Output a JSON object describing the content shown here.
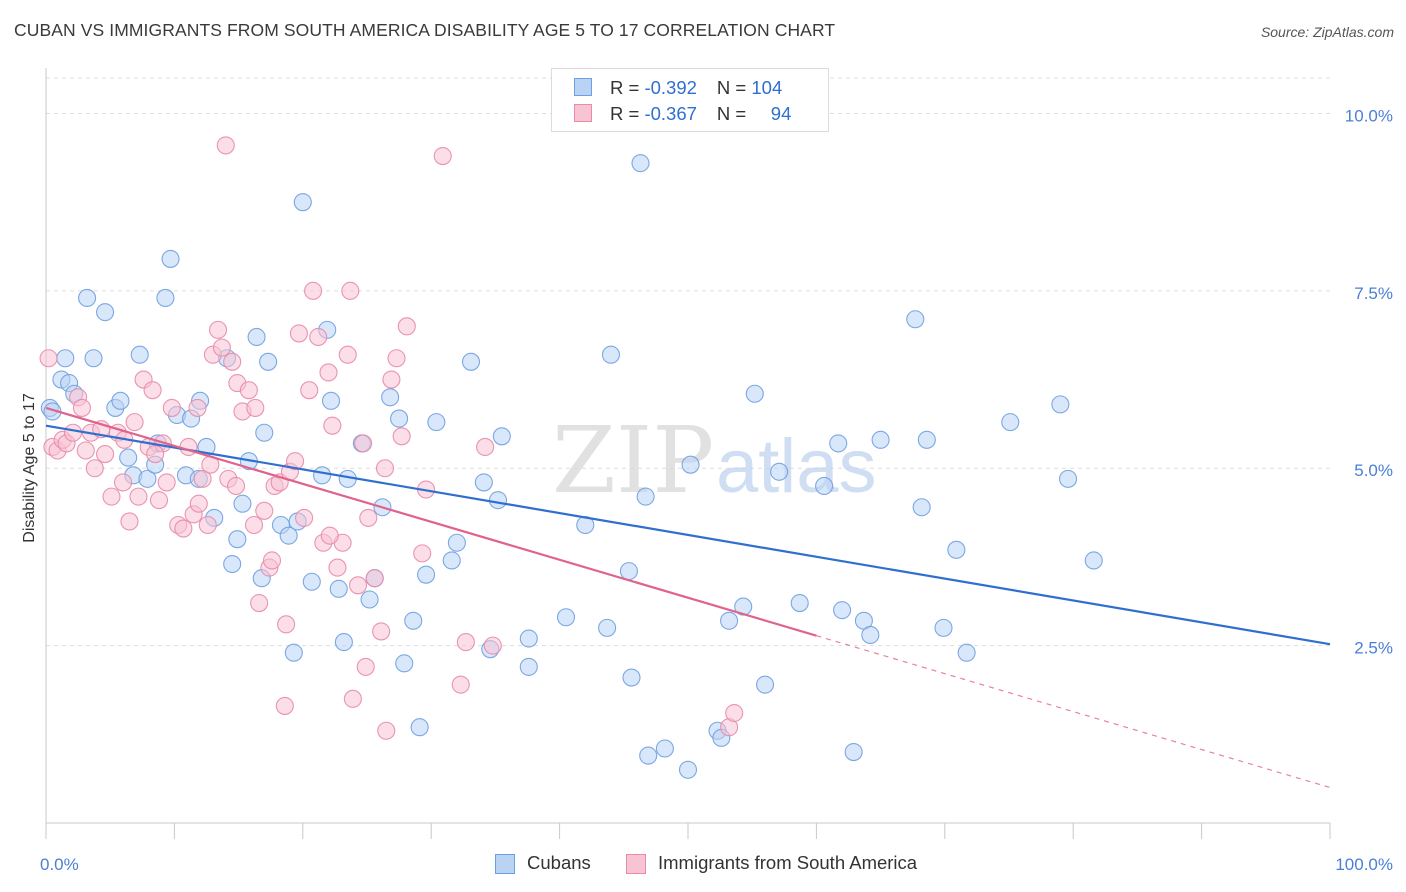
{
  "title": "CUBAN VS IMMIGRANTS FROM SOUTH AMERICA DISABILITY AGE 5 TO 17 CORRELATION CHART",
  "source": "Source: ZipAtlas.com",
  "watermark": {
    "zip": "ZIP",
    "atlas": "atlas"
  },
  "legend": {
    "rows": [
      {
        "r_label": "R = ",
        "r_value": "-0.392",
        "n_label": "N = ",
        "n_value": "104"
      },
      {
        "r_label": "R = ",
        "r_value": "-0.367",
        "n_label": "N = ",
        "n_value": "94"
      }
    ]
  },
  "colors": {
    "blue_fill": "#b9d3f5",
    "blue_stroke": "#6f9fe0",
    "blue_line": "#2f6fd0",
    "pink_fill": "#f8c3d3",
    "pink_stroke": "#e88aa8",
    "pink_line": "#e0638c",
    "grid": "#dddddd",
    "tick_label": "#4a7fd6"
  },
  "chart_data": {
    "type": "scatter",
    "title": "CUBAN VS IMMIGRANTS FROM SOUTH AMERICA DISABILITY AGE 5 TO 17 CORRELATION CHART",
    "xlabel": "",
    "ylabel": "Disability Age 5 to 17",
    "xlim": [
      0,
      100
    ],
    "ylim": [
      0,
      10.5
    ],
    "x_ticks": [
      0,
      10,
      20,
      30,
      40,
      50,
      60,
      70,
      80,
      90,
      100
    ],
    "x_tick_labels": {
      "0": "0.0%",
      "100": "100.0%"
    },
    "y_ticks": [
      2.5,
      5.0,
      7.5,
      10.0
    ],
    "y_tick_labels": [
      "2.5%",
      "5.0%",
      "7.5%",
      "10.0%"
    ],
    "grid": true,
    "legend_placement": "bottom",
    "series": [
      {
        "name": "Cubans",
        "color": "#6f9fe0",
        "trend": {
          "x0": 0,
          "y0": 5.6,
          "x1": 100,
          "y1": 2.52,
          "dashed_from": null
        },
        "points": [
          [
            0.3,
            5.85
          ],
          [
            0.5,
            5.8
          ],
          [
            1.2,
            6.25
          ],
          [
            1.5,
            6.55
          ],
          [
            1.8,
            6.2
          ],
          [
            2.2,
            6.05
          ],
          [
            3.2,
            7.4
          ],
          [
            3.7,
            6.55
          ],
          [
            4.6,
            7.2
          ],
          [
            5.4,
            5.85
          ],
          [
            5.8,
            5.95
          ],
          [
            6.4,
            5.15
          ],
          [
            6.8,
            4.9
          ],
          [
            7.3,
            6.6
          ],
          [
            7.9,
            4.85
          ],
          [
            8.5,
            5.05
          ],
          [
            8.7,
            5.35
          ],
          [
            9.3,
            7.4
          ],
          [
            9.7,
            7.95
          ],
          [
            10.2,
            5.75
          ],
          [
            10.9,
            4.9
          ],
          [
            11.3,
            5.7
          ],
          [
            11.9,
            4.85
          ],
          [
            12.0,
            5.95
          ],
          [
            12.5,
            5.3
          ],
          [
            13.1,
            4.3
          ],
          [
            14.1,
            6.55
          ],
          [
            14.5,
            3.65
          ],
          [
            14.9,
            4.0
          ],
          [
            15.3,
            4.5
          ],
          [
            15.8,
            5.1
          ],
          [
            16.4,
            6.85
          ],
          [
            16.8,
            3.45
          ],
          [
            17.3,
            6.5
          ],
          [
            18.3,
            4.2
          ],
          [
            18.9,
            4.05
          ],
          [
            19.3,
            2.4
          ],
          [
            19.6,
            4.25
          ],
          [
            20.0,
            8.75
          ],
          [
            20.7,
            3.4
          ],
          [
            21.5,
            4.9
          ],
          [
            21.9,
            6.95
          ],
          [
            22.2,
            5.95
          ],
          [
            23.2,
            2.55
          ],
          [
            23.5,
            4.85
          ],
          [
            24.6,
            5.35
          ],
          [
            25.2,
            3.15
          ],
          [
            25.6,
            3.45
          ],
          [
            26.2,
            4.45
          ],
          [
            26.8,
            6.0
          ],
          [
            27.5,
            5.7
          ],
          [
            27.9,
            2.25
          ],
          [
            28.6,
            2.85
          ],
          [
            29.1,
            1.35
          ],
          [
            29.6,
            3.5
          ],
          [
            30.4,
            5.65
          ],
          [
            31.6,
            3.7
          ],
          [
            32.0,
            3.95
          ],
          [
            33.1,
            6.5
          ],
          [
            34.1,
            4.8
          ],
          [
            34.6,
            2.45
          ],
          [
            35.2,
            4.55
          ],
          [
            35.5,
            5.45
          ],
          [
            37.6,
            2.6
          ],
          [
            37.6,
            2.2
          ],
          [
            40.5,
            2.9
          ],
          [
            42.0,
            4.2
          ],
          [
            43.7,
            2.75
          ],
          [
            44.0,
            6.6
          ],
          [
            45.4,
            3.55
          ],
          [
            45.6,
            2.05
          ],
          [
            46.3,
            9.3
          ],
          [
            46.7,
            4.6
          ],
          [
            46.9,
            0.95
          ],
          [
            48.2,
            1.05
          ],
          [
            50.0,
            0.75
          ],
          [
            50.2,
            5.05
          ],
          [
            52.3,
            1.3
          ],
          [
            52.6,
            1.2
          ],
          [
            53.2,
            2.85
          ],
          [
            54.3,
            3.05
          ],
          [
            55.2,
            6.05
          ],
          [
            56.0,
            1.95
          ],
          [
            57.1,
            4.95
          ],
          [
            58.7,
            3.1
          ],
          [
            60.6,
            4.75
          ],
          [
            61.7,
            5.35
          ],
          [
            62.0,
            3.0
          ],
          [
            62.9,
            1.0
          ],
          [
            63.7,
            2.85
          ],
          [
            64.2,
            2.65
          ],
          [
            65.0,
            5.4
          ],
          [
            67.7,
            7.1
          ],
          [
            68.2,
            4.45
          ],
          [
            68.6,
            5.4
          ],
          [
            69.9,
            2.75
          ],
          [
            70.9,
            3.85
          ],
          [
            71.7,
            2.4
          ],
          [
            75.1,
            5.65
          ],
          [
            79.0,
            5.9
          ],
          [
            79.6,
            4.85
          ],
          [
            81.6,
            3.7
          ],
          [
            22.8,
            3.3
          ],
          [
            17.0,
            5.5
          ]
        ]
      },
      {
        "name": "Immigrants from South America",
        "color": "#e88aa8",
        "trend": {
          "x0": 0,
          "y0": 5.85,
          "x1": 100,
          "y1": 0.5,
          "dashed_from": 60
        },
        "points": [
          [
            0.2,
            6.55
          ],
          [
            0.5,
            5.3
          ],
          [
            0.9,
            5.25
          ],
          [
            1.3,
            5.4
          ],
          [
            1.6,
            5.35
          ],
          [
            2.1,
            5.5
          ],
          [
            2.5,
            6.0
          ],
          [
            2.8,
            5.85
          ],
          [
            3.1,
            5.25
          ],
          [
            3.5,
            5.5
          ],
          [
            3.8,
            5.0
          ],
          [
            4.3,
            5.55
          ],
          [
            4.6,
            5.2
          ],
          [
            5.1,
            4.6
          ],
          [
            5.6,
            5.5
          ],
          [
            6.1,
            5.4
          ],
          [
            6.5,
            4.25
          ],
          [
            6.9,
            5.65
          ],
          [
            7.2,
            4.6
          ],
          [
            7.6,
            6.25
          ],
          [
            8.0,
            5.3
          ],
          [
            8.3,
            6.1
          ],
          [
            8.8,
            4.55
          ],
          [
            9.1,
            5.35
          ],
          [
            9.4,
            4.8
          ],
          [
            9.8,
            5.85
          ],
          [
            10.3,
            4.2
          ],
          [
            10.7,
            4.15
          ],
          [
            11.1,
            5.3
          ],
          [
            11.5,
            4.35
          ],
          [
            11.8,
            5.85
          ],
          [
            12.2,
            4.85
          ],
          [
            12.6,
            4.2
          ],
          [
            13.0,
            6.6
          ],
          [
            13.4,
            6.95
          ],
          [
            13.7,
            6.7
          ],
          [
            14.2,
            4.85
          ],
          [
            14.5,
            6.5
          ],
          [
            14.9,
            6.2
          ],
          [
            15.3,
            5.8
          ],
          [
            15.8,
            6.1
          ],
          [
            16.2,
            4.2
          ],
          [
            16.6,
            3.1
          ],
          [
            17.0,
            4.4
          ],
          [
            17.4,
            3.6
          ],
          [
            17.8,
            4.75
          ],
          [
            18.2,
            4.8
          ],
          [
            18.6,
            1.65
          ],
          [
            19.0,
            4.95
          ],
          [
            19.4,
            5.1
          ],
          [
            19.7,
            6.9
          ],
          [
            20.1,
            4.3
          ],
          [
            20.5,
            6.1
          ],
          [
            20.8,
            7.5
          ],
          [
            21.2,
            6.85
          ],
          [
            21.6,
            3.95
          ],
          [
            22.0,
            6.35
          ],
          [
            22.3,
            5.6
          ],
          [
            22.7,
            3.6
          ],
          [
            23.1,
            3.95
          ],
          [
            23.5,
            6.6
          ],
          [
            23.9,
            1.75
          ],
          [
            24.3,
            3.35
          ],
          [
            24.7,
            5.35
          ],
          [
            25.1,
            4.3
          ],
          [
            25.6,
            3.45
          ],
          [
            26.1,
            2.7
          ],
          [
            26.5,
            1.3
          ],
          [
            26.9,
            6.25
          ],
          [
            27.3,
            6.55
          ],
          [
            27.7,
            5.45
          ],
          [
            28.1,
            7.0
          ],
          [
            29.6,
            4.7
          ],
          [
            30.9,
            9.4
          ],
          [
            32.3,
            1.95
          ],
          [
            32.7,
            2.55
          ],
          [
            34.2,
            5.3
          ],
          [
            34.8,
            2.5
          ],
          [
            53.2,
            1.35
          ],
          [
            53.6,
            1.55
          ],
          [
            14.0,
            9.55
          ],
          [
            23.7,
            7.5
          ],
          [
            18.7,
            2.8
          ],
          [
            17.6,
            3.7
          ],
          [
            24.9,
            2.2
          ],
          [
            16.3,
            5.85
          ],
          [
            8.5,
            5.2
          ],
          [
            6.0,
            4.8
          ],
          [
            11.9,
            4.5
          ],
          [
            14.8,
            4.75
          ],
          [
            22.1,
            4.05
          ],
          [
            26.4,
            5.0
          ],
          [
            29.3,
            3.8
          ],
          [
            12.8,
            5.05
          ]
        ]
      }
    ]
  },
  "bottom_legend": [
    {
      "label": "Cubans"
    },
    {
      "label": "Immigrants from South America"
    }
  ]
}
